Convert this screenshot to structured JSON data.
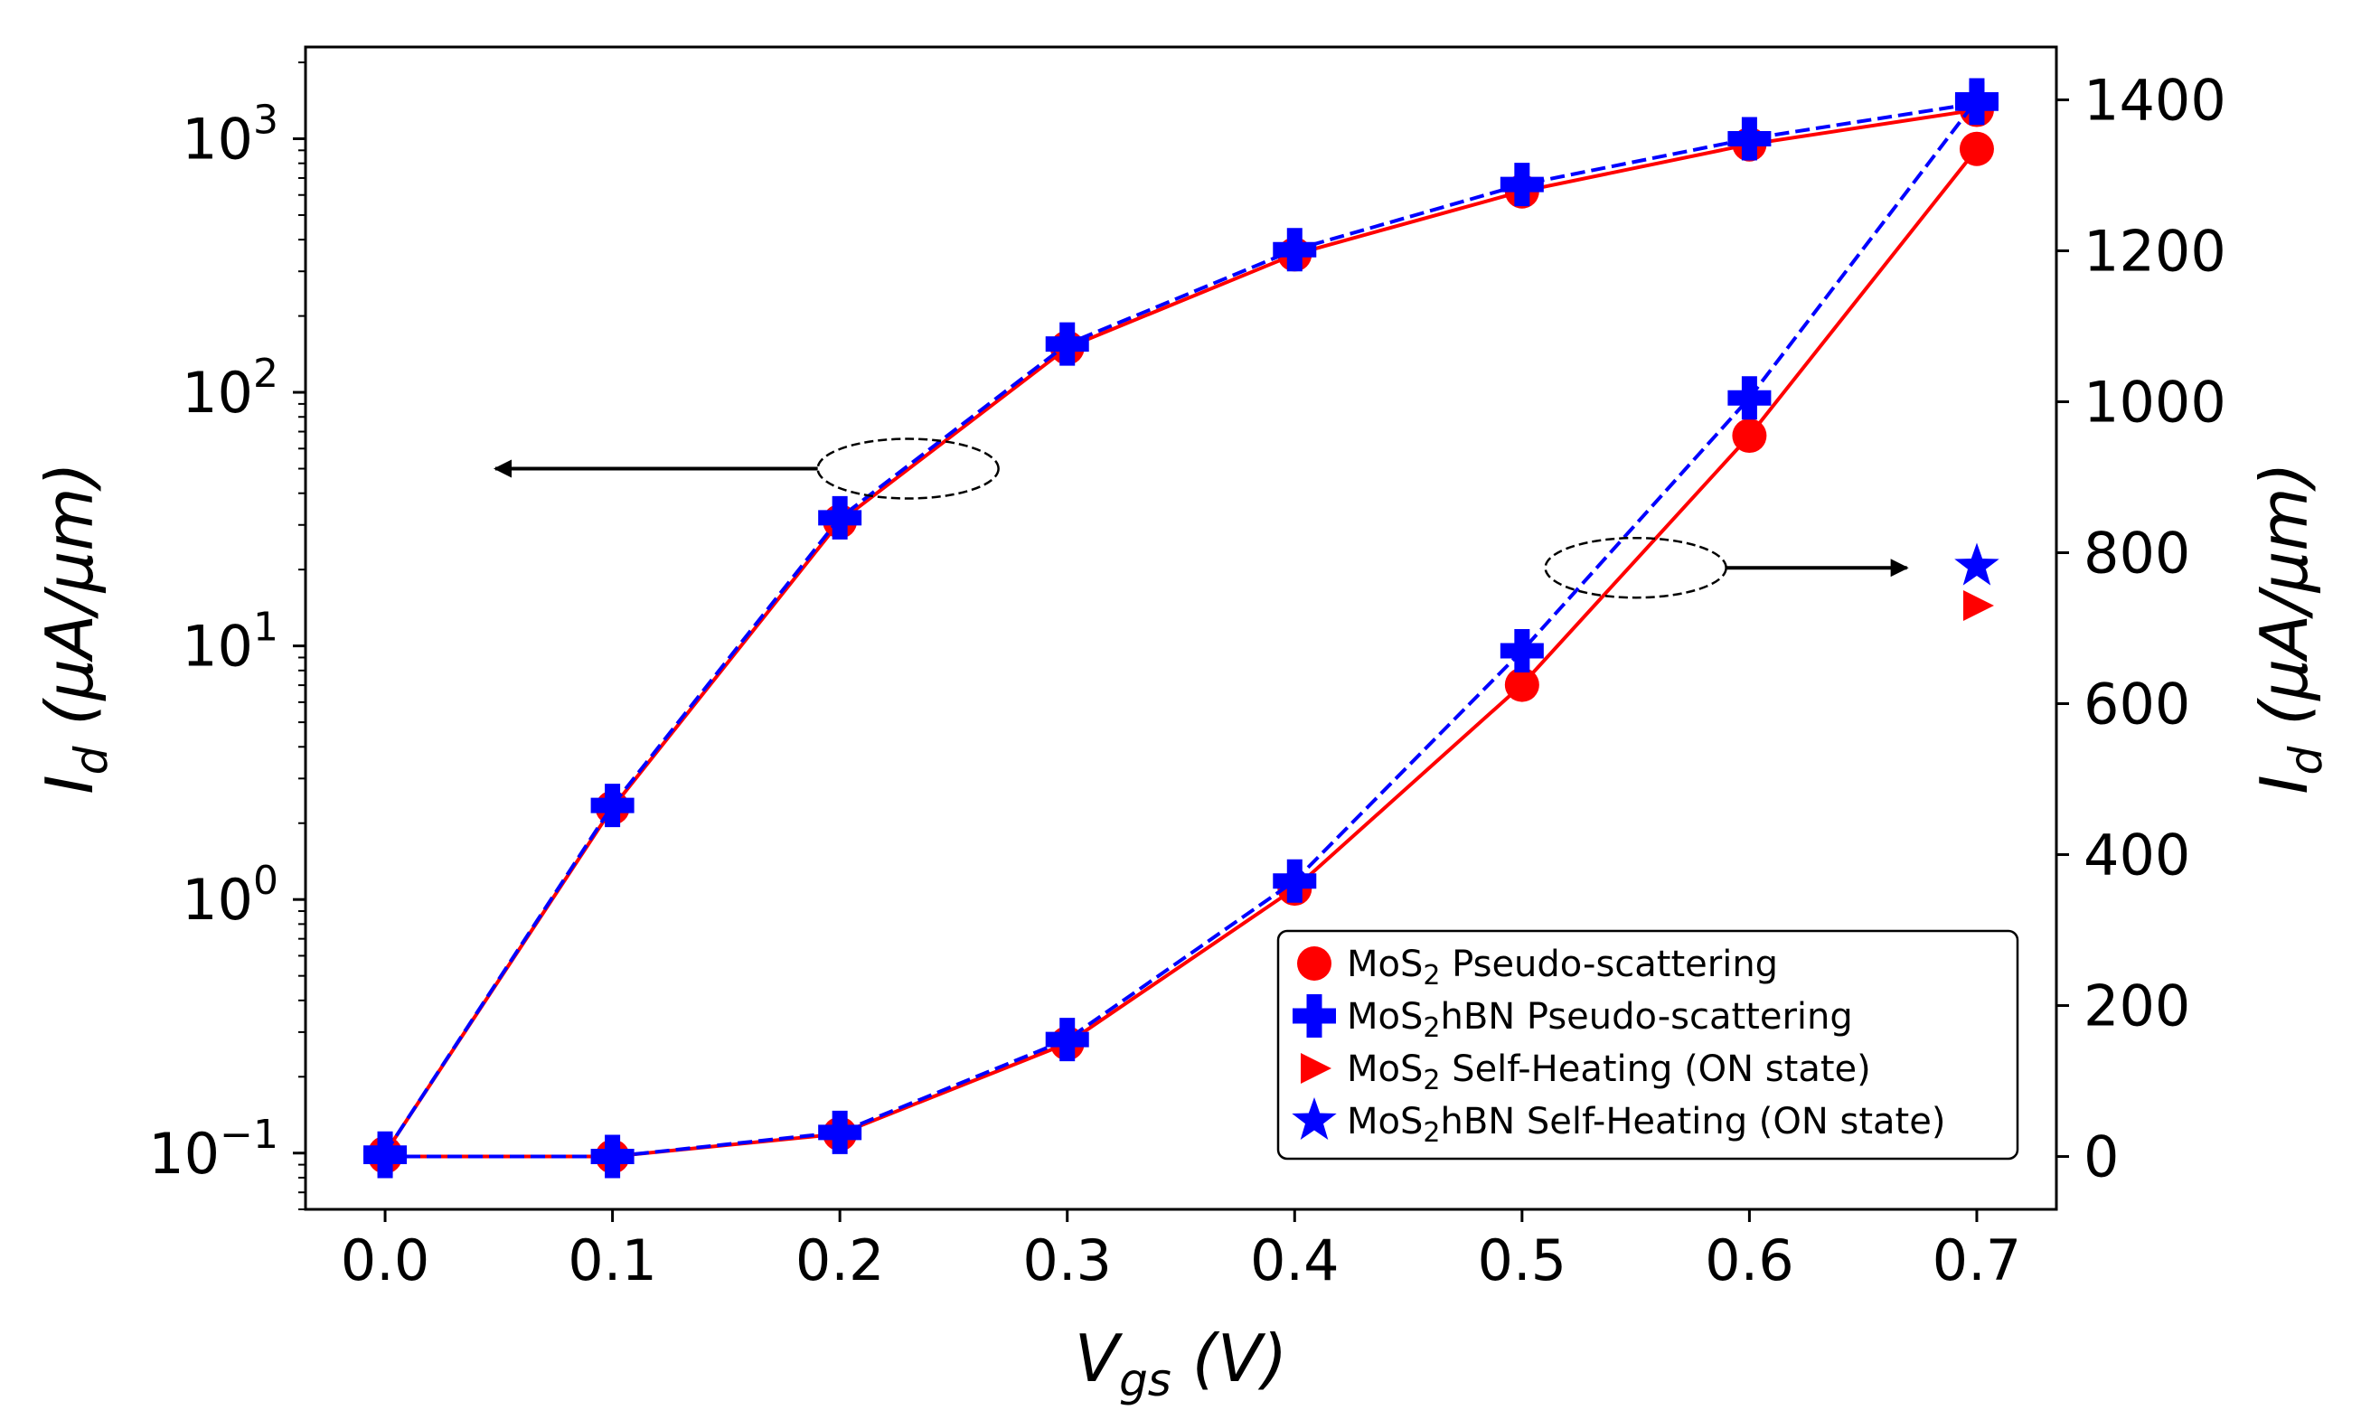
{
  "chart_data": {
    "type": "line",
    "xlabel": "V_gs (V)",
    "ylabel_left": "I_d (µA/µm)",
    "ylabel_right": "I_d (µA/µm)",
    "xlim": [
      -0.035,
      0.735
    ],
    "x_ticks": [
      "0.0",
      "0.1",
      "0.2",
      "0.3",
      "0.4",
      "0.5",
      "0.6",
      "0.7"
    ],
    "ylim_left_log": [
      0.06,
      2300
    ],
    "y_left_tick_exponents": [
      "−1",
      "0",
      "1",
      "2",
      "3"
    ],
    "ylim_right": [
      -70,
      1470
    ],
    "y_right_ticks": [
      "0",
      "200",
      "400",
      "600",
      "800",
      "1000",
      "1200",
      "1400"
    ],
    "x": [
      0.0,
      0.1,
      0.2,
      0.3,
      0.4,
      0.5,
      0.6,
      0.7
    ],
    "series": [
      {
        "name": "MoS2 Pseudo-scattering",
        "axis": "left-log",
        "color": "#ff0000",
        "marker": "circle",
        "linestyle": "solid",
        "values": [
          0.1,
          2.3,
          31,
          150,
          350,
          620,
          950,
          1300
        ]
      },
      {
        "name": "MoS2hBN Pseudo-scattering",
        "axis": "left-log",
        "color": "#0000ff",
        "marker": "plus",
        "linestyle": "dashed",
        "values": [
          0.1,
          2.35,
          32,
          155,
          365,
          660,
          1000,
          1380
        ]
      },
      {
        "name": "MoS2 Pseudo-scattering",
        "axis": "right-linear",
        "color": "#ff0000",
        "marker": "circle",
        "linestyle": "solid",
        "values": [
          0,
          0,
          30,
          150,
          355,
          625,
          955,
          1335
        ]
      },
      {
        "name": "MoS2hBN Pseudo-scattering",
        "axis": "right-linear",
        "color": "#0000ff",
        "marker": "plus",
        "linestyle": "dashed",
        "values": [
          0,
          0,
          32,
          155,
          365,
          670,
          1005,
          1400
        ]
      },
      {
        "name": "MoS2 Self-Heating (ON state)",
        "axis": "right-linear",
        "color": "#ff0000",
        "marker": "triangle-right",
        "x": [
          0.7
        ],
        "values": [
          730
        ]
      },
      {
        "name": "MoS2hBN Self-Heating (ON state)",
        "axis": "right-linear",
        "color": "#0000ff",
        "marker": "star",
        "x": [
          0.7
        ],
        "values": [
          782
        ]
      }
    ],
    "legend": {
      "placement": "lower-right",
      "entries": [
        {
          "prefix": "MoS",
          "sub": "2",
          "suffix": " Pseudo-scattering",
          "color": "#ff0000",
          "marker": "circle"
        },
        {
          "prefix": "MoS",
          "sub": "2",
          "suffix": "hBN Pseudo-scattering",
          "color": "#0000ff",
          "marker": "plus"
        },
        {
          "prefix": "MoS",
          "sub": "2",
          "suffix": " Self-Heating (ON state)",
          "color": "#ff0000",
          "marker": "triangle-right"
        },
        {
          "prefix": "MoS",
          "sub": "2",
          "suffix": "hBN Self-Heating (ON state)",
          "color": "#0000ff",
          "marker": "star"
        }
      ]
    },
    "annotations": [
      {
        "type": "ellipse-arrow",
        "direction": "left",
        "meaning": "curve read on left axis",
        "at": {
          "x": 0.23,
          "y_left": 50
        }
      },
      {
        "type": "ellipse-arrow",
        "direction": "right",
        "meaning": "curve read on right axis",
        "at": {
          "x": 0.55,
          "y_right": 780
        }
      }
    ]
  }
}
